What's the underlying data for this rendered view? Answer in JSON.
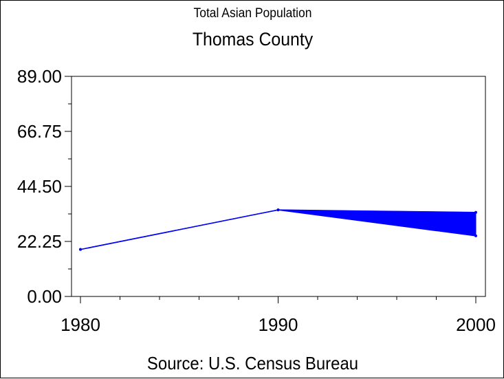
{
  "chart_data": {
    "type": "line",
    "title": "Thomas County",
    "subtitle": "Total Asian Population",
    "source": "Source: U.S. Census Bureau",
    "x": [
      1980,
      1990,
      2000
    ],
    "x_tick_labels": [
      "1980",
      "1990",
      "2000"
    ],
    "xlim": [
      1980,
      2000
    ],
    "ylim": [
      0,
      89
    ],
    "y_tick_labels": [
      "89.00",
      "66.75",
      "44.50",
      "22.25",
      "0.00"
    ],
    "y_ticks": [
      89,
      66.75,
      44.5,
      22.25,
      0
    ],
    "series": [
      {
        "values": [
          19,
          35,
          34
        ],
        "color": "#0000ff"
      },
      {
        "values": [
          19,
          35,
          24.5
        ],
        "color": "#0000ff"
      }
    ],
    "fill_between_series": true,
    "grid": false
  },
  "colors": {
    "line": "#0000ff",
    "axis": "#000000"
  }
}
